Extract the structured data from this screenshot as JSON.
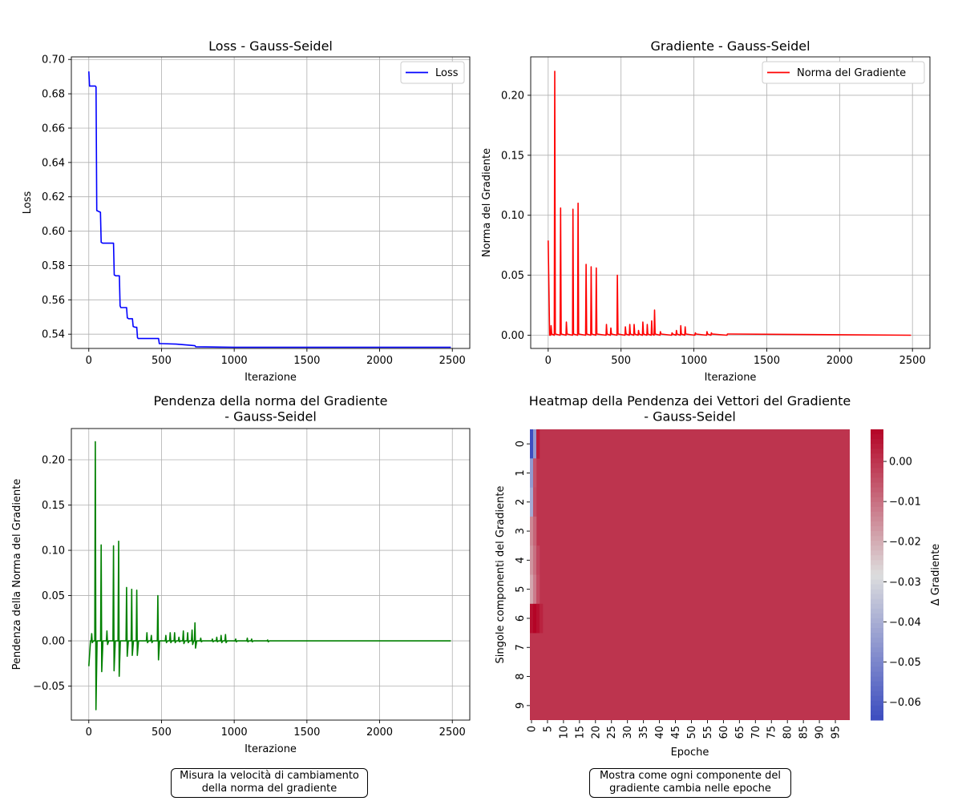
{
  "colors": {
    "loss": "#0000ff",
    "gradient": "#ff0000",
    "slope": "#008000",
    "grid": "#b0b0b0",
    "heat_low": "#3b4cc0",
    "heat_mid": "#dddddd",
    "heat_high": "#b40426"
  },
  "chart_data": [
    {
      "id": "loss",
      "type": "line",
      "title": "Loss - Gauss-Seidel",
      "xlabel": "Iterazione",
      "ylabel": "Loss",
      "xlim": [
        -120,
        2620
      ],
      "ylim": [
        0.5317,
        0.7015
      ],
      "xticks": [
        0,
        500,
        1000,
        1500,
        2000,
        2500
      ],
      "xtick_labels": [
        "0",
        "500",
        "1000",
        "1500",
        "2000",
        "2500"
      ],
      "yticks": [
        0.54,
        0.56,
        0.58,
        0.6,
        0.62,
        0.64,
        0.66,
        0.68,
        0.7
      ],
      "ytick_labels": [
        "0.54",
        "0.56",
        "0.58",
        "0.60",
        "0.62",
        "0.64",
        "0.66",
        "0.68",
        "0.70"
      ],
      "grid": true,
      "legend_position": "upper right",
      "series": [
        {
          "name": "Loss",
          "color_key": "loss",
          "x": [
            0,
            5,
            45,
            50,
            55,
            80,
            85,
            95,
            170,
            175,
            185,
            210,
            215,
            220,
            260,
            265,
            275,
            300,
            305,
            320,
            330,
            335,
            340,
            480,
            485,
            500,
            600,
            700,
            730,
            735,
            800,
            900,
            1000,
            1500,
            2000,
            2490
          ],
          "y": [
            0.693,
            0.6845,
            0.6845,
            0.684,
            0.612,
            0.611,
            0.5935,
            0.593,
            0.593,
            0.5745,
            0.574,
            0.574,
            0.5565,
            0.5555,
            0.5555,
            0.5495,
            0.549,
            0.549,
            0.5445,
            0.544,
            0.544,
            0.538,
            0.5375,
            0.5375,
            0.5345,
            0.5345,
            0.5342,
            0.5335,
            0.5333,
            0.5327,
            0.5326,
            0.5325,
            0.5324,
            0.5324,
            0.5324,
            0.5324
          ]
        }
      ]
    },
    {
      "id": "gradient",
      "type": "line",
      "title": "Gradiente - Gauss-Seidel",
      "xlabel": "Iterazione",
      "ylabel": "Norma del Gradiente",
      "xlim": [
        -120,
        2620
      ],
      "ylim": [
        -0.011,
        0.232
      ],
      "xticks": [
        0,
        500,
        1000,
        1500,
        2000,
        2500
      ],
      "xtick_labels": [
        "0",
        "500",
        "1000",
        "1500",
        "2000",
        "2500"
      ],
      "yticks": [
        0.0,
        0.05,
        0.1,
        0.15,
        0.2
      ],
      "ytick_labels": [
        "0.00",
        "0.05",
        "0.10",
        "0.15",
        "0.20"
      ],
      "grid": true,
      "legend_position": "upper right",
      "series": [
        {
          "name": "Norma del Gradiente",
          "color_key": "gradient",
          "spikes": [
            [
              0,
              0.079
            ],
            [
              20,
              0.008
            ],
            [
              45,
              0.22
            ],
            [
              85,
              0.106
            ],
            [
              125,
              0.011
            ],
            [
              170,
              0.105
            ],
            [
              205,
              0.11
            ],
            [
              260,
              0.059
            ],
            [
              295,
              0.057
            ],
            [
              330,
              0.056
            ],
            [
              400,
              0.009
            ],
            [
              430,
              0.006
            ],
            [
              475,
              0.05
            ],
            [
              530,
              0.007
            ],
            [
              560,
              0.009
            ],
            [
              590,
              0.009
            ],
            [
              620,
              0.004
            ],
            [
              650,
              0.011
            ],
            [
              680,
              0.009
            ],
            [
              710,
              0.012
            ],
            [
              730,
              0.021
            ],
            [
              770,
              0.003
            ],
            [
              850,
              0.002
            ],
            [
              880,
              0.004
            ],
            [
              910,
              0.008
            ],
            [
              940,
              0.007
            ],
            [
              1010,
              0.002
            ],
            [
              1090,
              0.003
            ],
            [
              1120,
              0.002
            ],
            [
              1230,
              0.001
            ]
          ],
          "x_end": 2490
        }
      ]
    },
    {
      "id": "slope",
      "type": "line",
      "title": "Pendenza della norma del Gradiente\n- Gauss-Seidel",
      "xlabel": "Iterazione",
      "ylabel": "Pendenza della Norma del Gradiente",
      "xlim": [
        -120,
        2620
      ],
      "ylim": [
        -0.0875,
        0.2345
      ],
      "xticks": [
        0,
        500,
        1000,
        1500,
        2000,
        2500
      ],
      "xtick_labels": [
        "0",
        "500",
        "1000",
        "1500",
        "2000",
        "2500"
      ],
      "yticks": [
        -0.05,
        0.0,
        0.05,
        0.1,
        0.15,
        0.2
      ],
      "ytick_labels": [
        "−0.05",
        "0.00",
        "0.05",
        "0.10",
        "0.15",
        "0.20"
      ],
      "grid": true,
      "series": [
        {
          "name": "",
          "color_key": "slope",
          "start_value": -0.028,
          "spikes": [
            [
              20,
              0.008,
              -0.002
            ],
            [
              45,
              0.22,
              -0.076
            ],
            [
              85,
              0.106,
              -0.034
            ],
            [
              125,
              0.011,
              -0.004
            ],
            [
              170,
              0.105,
              -0.033
            ],
            [
              205,
              0.11,
              -0.039
            ],
            [
              260,
              0.059,
              -0.017
            ],
            [
              295,
              0.057,
              -0.016
            ],
            [
              330,
              0.056,
              -0.016
            ],
            [
              400,
              0.009,
              -0.002
            ],
            [
              430,
              0.006,
              -0.002
            ],
            [
              475,
              0.05,
              -0.021
            ],
            [
              530,
              0.006,
              -0.002
            ],
            [
              560,
              0.009,
              -0.002
            ],
            [
              590,
              0.009,
              -0.002
            ],
            [
              620,
              0.004,
              -0.001
            ],
            [
              650,
              0.011,
              -0.003
            ],
            [
              680,
              0.009,
              -0.002
            ],
            [
              710,
              0.012,
              -0.004
            ],
            [
              730,
              0.02,
              -0.008
            ],
            [
              770,
              0.003,
              -0.001
            ],
            [
              850,
              0.002,
              -0.001
            ],
            [
              880,
              0.004,
              -0.001
            ],
            [
              910,
              0.006,
              -0.002
            ],
            [
              940,
              0.007,
              -0.002
            ],
            [
              1010,
              0.002,
              -0.001
            ],
            [
              1090,
              0.003,
              -0.001
            ],
            [
              1120,
              0.002,
              -0.001
            ],
            [
              1230,
              0.001,
              -0.001
            ]
          ],
          "x_end": 2490
        }
      ]
    },
    {
      "id": "heatmap",
      "type": "heatmap",
      "title": "Heatmap della Pendenza dei Vettori del Gradiente\n- Gauss-Seidel",
      "xlabel": "Epoche",
      "ylabel": "Singole componenti del Gradiente",
      "colorbar_label": "Δ Gradiente",
      "colorbar_range": [
        -0.0645,
        0.008
      ],
      "colorbar_ticks": [
        0.0,
        -0.01,
        -0.02,
        -0.03,
        -0.04,
        -0.05,
        -0.06
      ],
      "colorbar_tick_labels": [
        "0.00",
        "−0.01",
        "−0.02",
        "−0.03",
        "−0.04",
        "−0.05",
        "−0.06"
      ],
      "n_epochs": 100,
      "xtick_labels": [
        "0",
        "5",
        "10",
        "15",
        "20",
        "25",
        "30",
        "35",
        "40",
        "45",
        "50",
        "55",
        "60",
        "65",
        "70",
        "75",
        "80",
        "85",
        "90",
        "95"
      ],
      "row_labels": [
        "0",
        "1",
        "2",
        "3",
        "4",
        "5",
        "6",
        "7",
        "8",
        "9"
      ],
      "background_value": 0.0,
      "cells": [
        {
          "row": 0,
          "epoch": 0,
          "value": -0.064
        },
        {
          "row": 0,
          "epoch": 1,
          "value": -0.045
        },
        {
          "row": 0,
          "epoch": 2,
          "value": 0.004
        },
        {
          "row": 1,
          "epoch": 0,
          "value": -0.045
        },
        {
          "row": 1,
          "epoch": 1,
          "value": -0.005
        },
        {
          "row": 2,
          "epoch": 0,
          "value": -0.041
        },
        {
          "row": 2,
          "epoch": 1,
          "value": -0.004
        },
        {
          "row": 3,
          "epoch": 0,
          "value": -0.014
        },
        {
          "row": 3,
          "epoch": 1,
          "value": -0.008
        },
        {
          "row": 4,
          "epoch": 0,
          "value": -0.016
        },
        {
          "row": 4,
          "epoch": 1,
          "value": -0.01
        },
        {
          "row": 4,
          "epoch": 2,
          "value": -0.003
        },
        {
          "row": 5,
          "epoch": 0,
          "value": -0.019
        },
        {
          "row": 5,
          "epoch": 1,
          "value": -0.012
        },
        {
          "row": 5,
          "epoch": 2,
          "value": -0.004
        },
        {
          "row": 6,
          "epoch": 0,
          "value": 0.006
        },
        {
          "row": 6,
          "epoch": 1,
          "value": 0.008
        },
        {
          "row": 6,
          "epoch": 2,
          "value": 0.006
        },
        {
          "row": 6,
          "epoch": 3,
          "value": 0.003
        }
      ]
    }
  ],
  "notes": {
    "left": "Misura la velocità di cambiamento\ndella norma del gradiente",
    "right": "Mostra come ogni componente del\ngradiente cambia nelle epoche"
  }
}
